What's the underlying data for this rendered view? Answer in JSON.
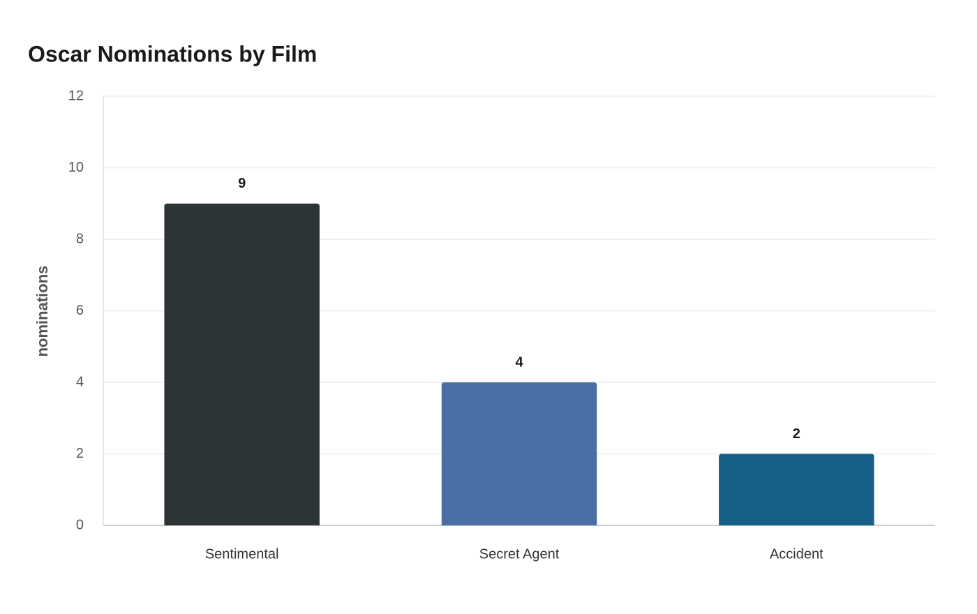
{
  "chart_data": {
    "type": "bar",
    "title": "Oscar Nominations by Film",
    "y_label": "nominations",
    "categories": [
      "Sentimental",
      "Secret Agent",
      "Accident"
    ],
    "values": [
      9,
      4,
      2
    ],
    "colors": [
      "#2d3436",
      "#4a6fa5",
      "#166088"
    ],
    "ylim": [
      0,
      12
    ],
    "yticks": [
      0,
      2,
      4,
      6,
      8,
      10,
      12
    ],
    "grid": true
  }
}
